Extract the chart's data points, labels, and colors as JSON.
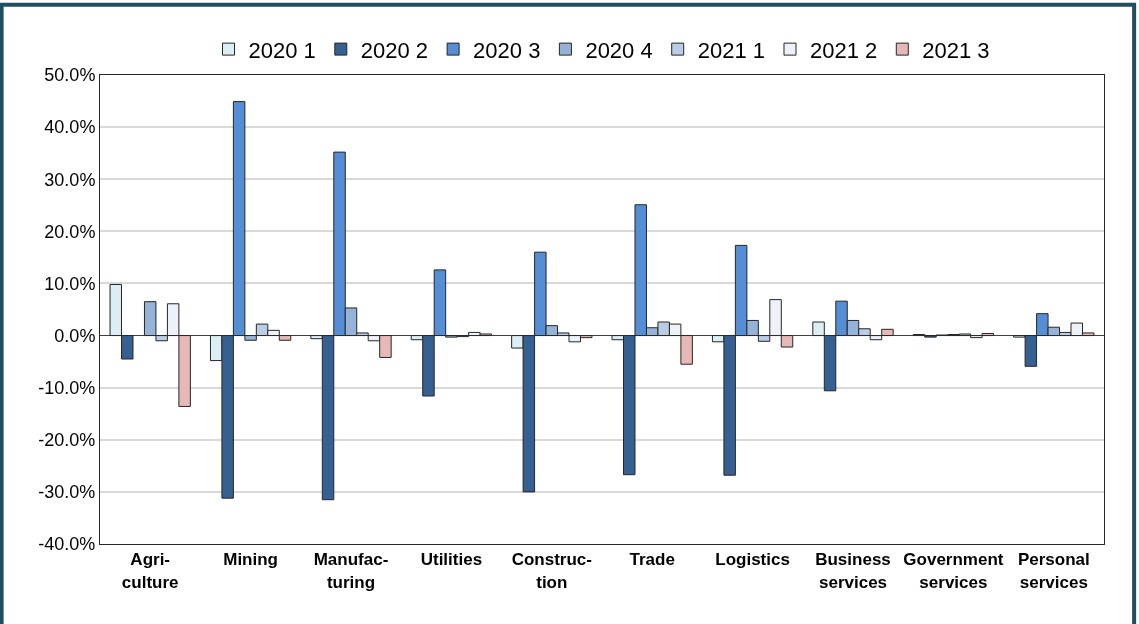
{
  "chart_data": {
    "type": "bar",
    "categories": [
      "Agri-\nculture",
      "Mining",
      "Manufac-\nturing",
      "Utilities",
      "Construc-\ntion",
      "Trade",
      "Logistics",
      "Business\nservices",
      "Government\nservices",
      "Personal\nservices"
    ],
    "series": [
      {
        "name": "2020 1",
        "color": "#daeef3",
        "values": [
          9.8,
          -4.8,
          -0.6,
          -0.8,
          -2.4,
          -0.8,
          -1.2,
          2.6,
          0.2,
          -0.3
        ]
      },
      {
        "name": "2020 2",
        "color": "#366092",
        "values": [
          -4.5,
          -31.2,
          -31.5,
          -11.6,
          -30.0,
          -26.7,
          -26.8,
          -10.6,
          -0.3,
          -5.9
        ]
      },
      {
        "name": "2020 3",
        "color": "#558ed5",
        "values": [
          null,
          44.9,
          35.2,
          12.6,
          16.0,
          25.1,
          17.3,
          6.6,
          0.1,
          4.2
        ]
      },
      {
        "name": "2020 4",
        "color": "#95b3d7",
        "values": [
          6.5,
          -0.9,
          5.3,
          -0.3,
          1.9,
          1.5,
          2.9,
          2.9,
          0.2,
          1.6
        ]
      },
      {
        "name": "2021 1",
        "color": "#b9cde5",
        "values": [
          -1.0,
          2.2,
          0.5,
          -0.2,
          0.5,
          2.6,
          -1.1,
          1.3,
          0.3,
          0.6
        ]
      },
      {
        "name": "2021 2",
        "color": "#eef2f8",
        "values": [
          6.1,
          1.0,
          -1.0,
          0.6,
          -1.2,
          2.2,
          6.9,
          -0.8,
          -0.4,
          2.4
        ]
      },
      {
        "name": "2021 3",
        "color": "#e6b9b8",
        "values": [
          -13.6,
          -0.9,
          -4.2,
          0.3,
          -0.4,
          -5.5,
          -2.2,
          1.2,
          0.4,
          0.5
        ]
      }
    ],
    "ylim": [
      -40,
      50
    ],
    "yticks": [
      {
        "value": -40,
        "label": "-40.0%"
      },
      {
        "value": -30,
        "label": "-30.0%"
      },
      {
        "value": -20,
        "label": "-20.0%"
      },
      {
        "value": -10,
        "label": "-10.0%"
      },
      {
        "value": 0,
        "label": "0.0%"
      },
      {
        "value": 10,
        "label": "10.0%"
      },
      {
        "value": 20,
        "label": "20.0%"
      },
      {
        "value": 30,
        "label": "30.0%"
      },
      {
        "value": 40,
        "label": "40.0%"
      },
      {
        "value": 50,
        "label": "50.0%"
      }
    ],
    "grid": "y",
    "legend": "top"
  }
}
